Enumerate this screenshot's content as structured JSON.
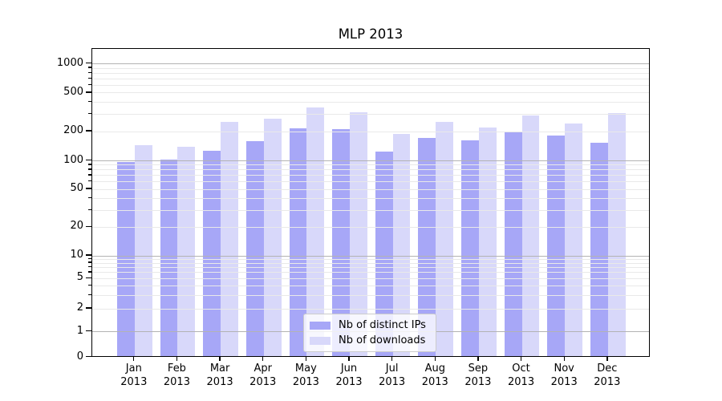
{
  "chart_data": {
    "type": "bar",
    "title": "MLP 2013",
    "xlabel": "",
    "ylabel": "",
    "yscale": "symlog",
    "yticks": [
      0,
      1,
      2,
      5,
      10,
      20,
      50,
      100,
      200,
      500,
      1000
    ],
    "ylim": [
      0,
      1420
    ],
    "grid": "horizontal, minor and major lines, drawn over bars",
    "legend_position": "lower center",
    "categories": [
      "Jan 2013",
      "Feb 2013",
      "Mar 2013",
      "Apr 2013",
      "May 2013",
      "Jun 2013",
      "Jul 2013",
      "Aug 2013",
      "Sep 2013",
      "Oct 2013",
      "Nov 2013",
      "Dec 2013"
    ],
    "series": [
      {
        "name": "Nb of distinct IPs",
        "color": "#a7a7f7",
        "values": [
          95,
          100,
          124,
          155,
          212,
          205,
          122,
          168,
          157,
          190,
          176,
          148
        ]
      },
      {
        "name": "Nb of downloads",
        "color": "#d8d8fa",
        "values": [
          140,
          135,
          245,
          265,
          345,
          310,
          185,
          245,
          215,
          285,
          235,
          300
        ]
      }
    ]
  },
  "colors": {
    "distinct_ips_bar": "#a7a7f7",
    "downloads_bar": "#d8d8fa",
    "grid_minor": "#e9e9e9",
    "grid_major": "#b3b3b3",
    "axis_spine": "#000000",
    "legend_border": "#cccccc"
  }
}
